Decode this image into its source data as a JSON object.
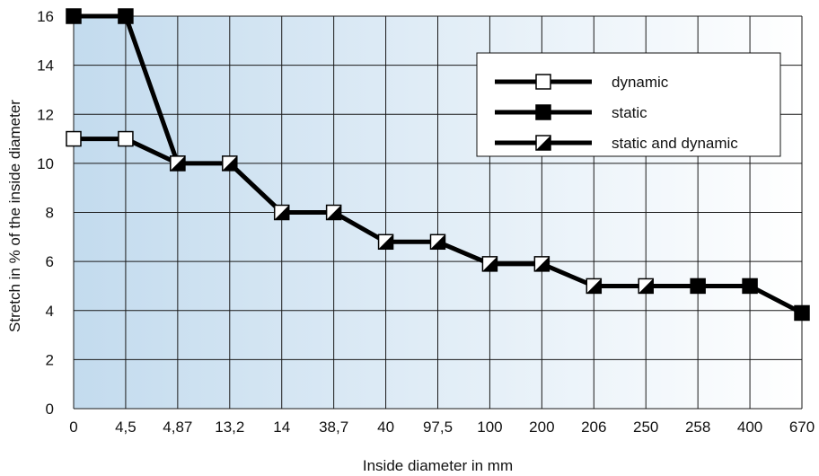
{
  "chart_data": {
    "type": "line",
    "xlabel": "Inside diameter in mm",
    "ylabel": "Stretch in % of the inside diameter",
    "categories": [
      "0",
      "4,5",
      "4,87",
      "13,2",
      "14",
      "38,7",
      "40",
      "97,5",
      "100",
      "200",
      "206",
      "250",
      "258",
      "400",
      "670"
    ],
    "yticks": [
      0,
      2,
      4,
      6,
      8,
      10,
      12,
      14,
      16
    ],
    "ylim": [
      0,
      16
    ],
    "grid": true,
    "background": "blue-to-white horizontal gradient",
    "legend_placement": "top-right",
    "legend": [
      {
        "label": "dynamic",
        "marker": "open-square"
      },
      {
        "label": "static",
        "marker": "filled-square"
      },
      {
        "label": "static and dynamic",
        "marker": "half-square"
      }
    ],
    "series": [
      {
        "name": "static",
        "points": [
          {
            "x": "0",
            "y": 16,
            "marker": "filled"
          },
          {
            "x": "4,5",
            "y": 16,
            "marker": "filled"
          },
          {
            "x": "4,87",
            "y": 10,
            "marker": "half"
          }
        ]
      },
      {
        "name": "dynamic",
        "points": [
          {
            "x": "0",
            "y": 11,
            "marker": "open"
          },
          {
            "x": "4,5",
            "y": 11,
            "marker": "open"
          },
          {
            "x": "4,87",
            "y": 10,
            "marker": "half"
          },
          {
            "x": "13,2",
            "y": 10,
            "marker": "half"
          },
          {
            "x": "14",
            "y": 8,
            "marker": "half"
          },
          {
            "x": "38,7",
            "y": 8,
            "marker": "half"
          },
          {
            "x": "40",
            "y": 6.8,
            "marker": "half"
          },
          {
            "x": "97,5",
            "y": 6.8,
            "marker": "half"
          },
          {
            "x": "100",
            "y": 5.9,
            "marker": "half"
          },
          {
            "x": "200",
            "y": 5.9,
            "marker": "half"
          },
          {
            "x": "206",
            "y": 5,
            "marker": "half"
          },
          {
            "x": "250",
            "y": 5,
            "marker": "half"
          },
          {
            "x": "258",
            "y": 5,
            "marker": "filled"
          },
          {
            "x": "400",
            "y": 5,
            "marker": "filled"
          },
          {
            "x": "670",
            "y": 3.9,
            "marker": "filled"
          }
        ]
      }
    ],
    "colors": {
      "line": "#000000",
      "grid": "#1a1a1a",
      "bg_left": "#c3dbee",
      "bg_right": "#ffffff"
    }
  }
}
